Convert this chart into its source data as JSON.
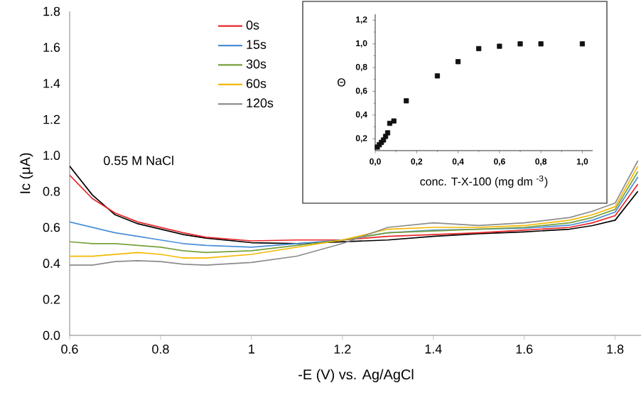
{
  "chart_data": [
    {
      "type": "line",
      "xlabel": "-E (V) vs. Ag/AgCl",
      "ylabel": "Ic (μA)",
      "xlim": [
        0.6,
        1.86
      ],
      "ylim": [
        0,
        1.8
      ],
      "xticks": [
        0.6,
        0.8,
        1,
        1.2,
        1.4,
        1.6,
        1.8
      ],
      "yticks": [
        {
          "value": 0,
          "label": "0.0"
        },
        0.2,
        0.4,
        0.6,
        0.8,
        {
          "value": 1,
          "label": "1.0"
        },
        1.2,
        1.4,
        1.6,
        1.8
      ],
      "legend": "top",
      "marker": "none",
      "line_style": "solid",
      "annotations": [
        "0.55 M NaCl"
      ],
      "x": [
        0.6,
        0.65,
        0.7,
        0.75,
        0.8,
        0.85,
        0.9,
        1.0,
        1.1,
        1.2,
        1.3,
        1.4,
        1.5,
        1.6,
        1.7,
        1.75,
        1.8,
        1.85
      ],
      "series": [
        {
          "color": "#000000",
          "values": [
            0.94,
            0.78,
            0.67,
            0.62,
            0.59,
            0.56,
            0.54,
            0.515,
            0.51,
            0.52,
            0.53,
            0.55,
            0.565,
            0.575,
            0.59,
            0.61,
            0.64,
            0.8
          ]
        },
        {
          "name": "0s",
          "color": "#e8262a",
          "values": [
            0.89,
            0.76,
            0.68,
            0.63,
            0.6,
            0.57,
            0.545,
            0.525,
            0.53,
            0.53,
            0.55,
            0.56,
            0.57,
            0.585,
            0.6,
            0.625,
            0.665,
            0.84
          ]
        },
        {
          "name": "15s",
          "color": "#4a8fd6",
          "values": [
            0.63,
            0.6,
            0.57,
            0.55,
            0.53,
            0.51,
            0.5,
            0.49,
            0.51,
            0.53,
            0.57,
            0.585,
            0.59,
            0.595,
            0.612,
            0.64,
            0.685,
            0.88
          ]
        },
        {
          "name": "30s",
          "color": "#78a03c",
          "values": [
            0.52,
            0.51,
            0.51,
            0.5,
            0.49,
            0.47,
            0.46,
            0.47,
            0.5,
            0.53,
            0.57,
            0.58,
            0.59,
            0.6,
            0.625,
            0.655,
            0.7,
            0.91
          ]
        },
        {
          "name": "60s",
          "color": "#f5b800",
          "values": [
            0.44,
            0.44,
            0.45,
            0.46,
            0.45,
            0.43,
            0.43,
            0.45,
            0.49,
            0.53,
            0.59,
            0.6,
            0.6,
            0.61,
            0.64,
            0.67,
            0.715,
            0.94
          ]
        },
        {
          "name": "120s",
          "color": "#8c8c8c",
          "values": [
            0.39,
            0.39,
            0.41,
            0.415,
            0.41,
            0.395,
            0.39,
            0.405,
            0.44,
            0.51,
            0.6,
            0.625,
            0.61,
            0.625,
            0.655,
            0.69,
            0.735,
            0.97
          ]
        }
      ]
    },
    {
      "type": "scatter",
      "xlabel": "conc. T-X-100 (mg dm $^{-3}$)",
      "ylabel": "Θ",
      "xlim": [
        0,
        1.05
      ],
      "ylim": [
        0.1,
        1.25
      ],
      "xticks": [
        {
          "value": 0,
          "label": "0,0"
        },
        {
          "value": 0.2,
          "label": "0,2"
        },
        {
          "value": 0.4,
          "label": "0,4"
        },
        {
          "value": 0.6,
          "label": "0,6"
        },
        {
          "value": 0.8,
          "label": "0,8"
        },
        {
          "value": 1,
          "label": "1,0"
        }
      ],
      "yticks": [
        {
          "value": 0.2,
          "label": "0,2"
        },
        {
          "value": 0.4,
          "label": "0,4"
        },
        {
          "value": 0.6,
          "label": "0,6"
        },
        {
          "value": 0.8,
          "label": "0,8"
        },
        {
          "value": 1,
          "label": "1,0"
        },
        {
          "value": 1.2,
          "label": "1,2"
        }
      ],
      "marker": "square",
      "x": [
        0.01,
        0.02,
        0.03,
        0.04,
        0.05,
        0.06,
        0.07,
        0.09,
        0.15,
        0.3,
        0.4,
        0.5,
        0.6,
        0.7,
        0.8,
        1.0
      ],
      "series": [
        {
          "color": "#111111",
          "values": [
            0.13,
            0.15,
            0.17,
            0.19,
            0.22,
            0.25,
            0.33,
            0.35,
            0.52,
            0.73,
            0.85,
            0.96,
            0.98,
            1.0,
            1.0,
            1.0
          ]
        }
      ]
    }
  ]
}
